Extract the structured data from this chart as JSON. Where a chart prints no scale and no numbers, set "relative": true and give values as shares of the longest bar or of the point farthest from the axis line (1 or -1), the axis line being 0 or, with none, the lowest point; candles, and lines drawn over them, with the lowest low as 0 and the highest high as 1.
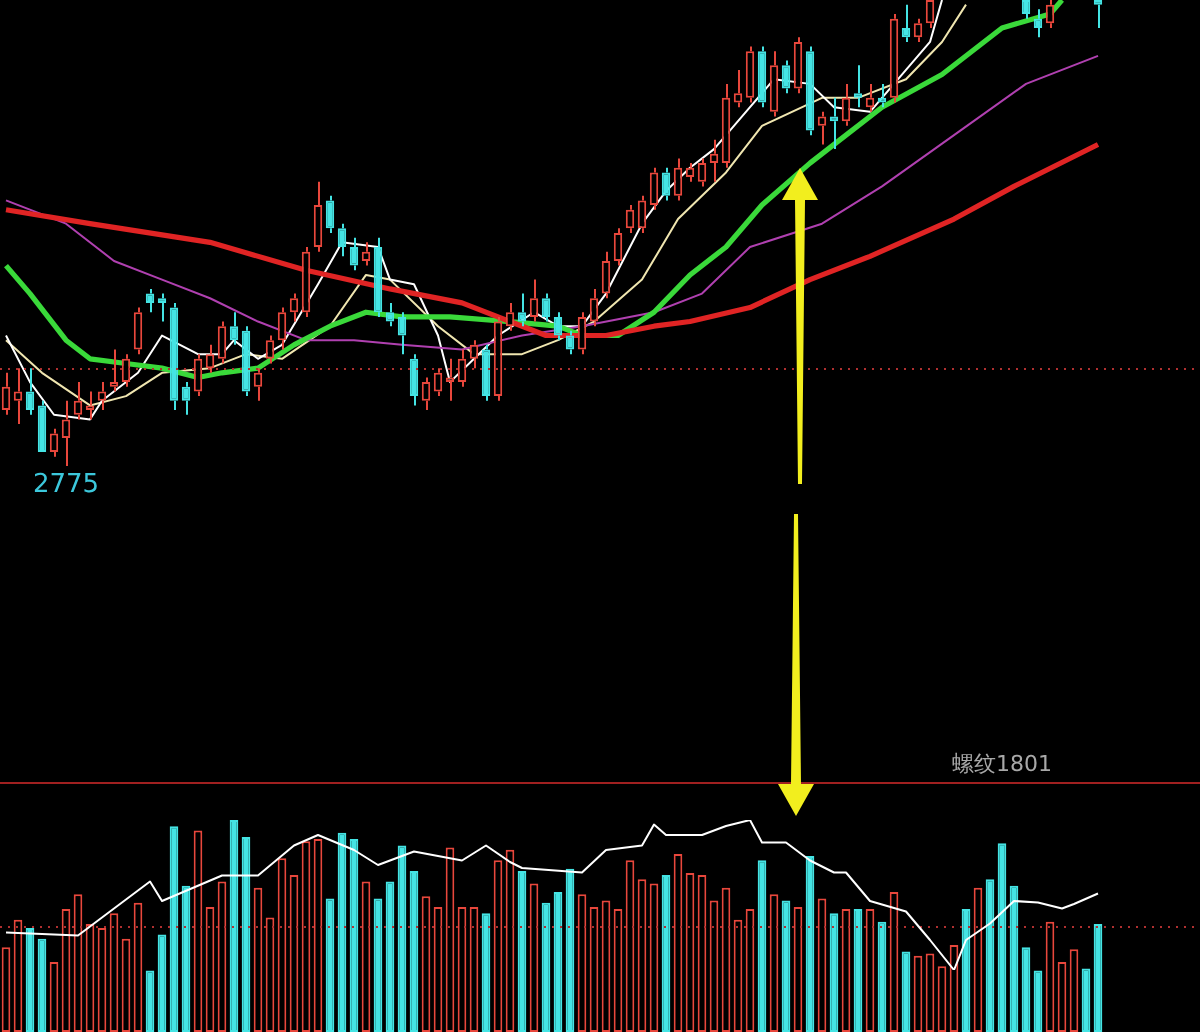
{
  "chart_data": [
    {
      "type": "candlestick",
      "relative": true,
      "categories": [
        null,
        null,
        null,
        null,
        null,
        null,
        null,
        null,
        null,
        null,
        null,
        null,
        null,
        null,
        null,
        null,
        null,
        null,
        null,
        null,
        null,
        null,
        null,
        null,
        null,
        null,
        null,
        null,
        null,
        null,
        null,
        null,
        null,
        null,
        null,
        null,
        null,
        null,
        null,
        null,
        null,
        null,
        null,
        null,
        null,
        null,
        null,
        null,
        null,
        null,
        null,
        null,
        null,
        null,
        null,
        null,
        null,
        null,
        null,
        null,
        null,
        null,
        null,
        null,
        null,
        null,
        null,
        null,
        null,
        null,
        null,
        null,
        null,
        null,
        null,
        null,
        null,
        null,
        null,
        null,
        null,
        null,
        null,
        null,
        null,
        null,
        null,
        null,
        null,
        null,
        null,
        null
      ],
      "ohlc": [
        [
          0.12,
          0.2,
          0.11,
          0.17
        ],
        [
          0.14,
          0.21,
          0.09,
          0.16
        ],
        [
          0.16,
          0.21,
          0.11,
          0.12
        ],
        [
          0.13,
          0.14,
          0.03,
          0.03
        ],
        [
          0.03,
          0.08,
          0.02,
          0.07
        ],
        [
          0.06,
          0.14,
          0,
          0.1
        ],
        [
          0.11,
          0.18,
          0.1,
          0.14
        ],
        [
          0.12,
          0.16,
          0.1,
          0.13
        ],
        [
          0.14,
          0.18,
          0.12,
          0.16
        ],
        [
          0.17,
          0.25,
          0.16,
          0.18
        ],
        [
          0.18,
          0.24,
          0.17,
          0.23
        ],
        [
          0.25,
          0.34,
          0.24,
          0.33
        ],
        [
          0.37,
          0.38,
          0.33,
          0.35
        ],
        [
          0.36,
          0.37,
          0.31,
          0.35
        ],
        [
          0.34,
          0.35,
          0.12,
          0.14
        ],
        [
          0.17,
          0.18,
          0.11,
          0.14
        ],
        [
          0.16,
          0.24,
          0.15,
          0.23
        ],
        [
          0.21,
          0.26,
          0.2,
          0.24
        ],
        [
          0.23,
          0.31,
          0.22,
          0.3
        ],
        [
          0.3,
          0.33,
          0.26,
          0.27
        ],
        [
          0.29,
          0.3,
          0.15,
          0.16
        ],
        [
          0.17,
          0.21,
          0.14,
          0.2
        ],
        [
          0.23,
          0.28,
          0.22,
          0.27
        ],
        [
          0.27,
          0.34,
          0.25,
          0.33
        ],
        [
          0.33,
          0.37,
          0.31,
          0.36
        ],
        [
          0.33,
          0.47,
          0.32,
          0.46
        ],
        [
          0.47,
          0.61,
          0.46,
          0.56
        ],
        [
          0.57,
          0.58,
          0.5,
          0.51
        ],
        [
          0.51,
          0.52,
          0.45,
          0.47
        ],
        [
          0.47,
          0.49,
          0.42,
          0.43
        ],
        [
          0.44,
          0.48,
          0.43,
          0.46
        ],
        [
          0.47,
          0.49,
          0.32,
          0.33
        ],
        [
          0.33,
          0.35,
          0.3,
          0.31
        ],
        [
          0.32,
          0.33,
          0.24,
          0.28
        ],
        [
          0.23,
          0.24,
          0.13,
          0.15
        ],
        [
          0.14,
          0.19,
          0.12,
          0.18
        ],
        [
          0.16,
          0.21,
          0.15,
          0.2
        ],
        [
          0.18,
          0.23,
          0.14,
          0.19
        ],
        [
          0.18,
          0.25,
          0.17,
          0.23
        ],
        [
          0.23,
          0.27,
          0.21,
          0.26
        ],
        [
          0.25,
          0.26,
          0.14,
          0.15
        ],
        [
          0.15,
          0.32,
          0.14,
          0.31
        ],
        [
          0.3,
          0.35,
          0.29,
          0.33
        ],
        [
          0.33,
          0.37,
          0.3,
          0.31
        ],
        [
          0.32,
          0.4,
          0.31,
          0.36
        ],
        [
          0.36,
          0.37,
          0.31,
          0.32
        ],
        [
          0.32,
          0.33,
          0.27,
          0.28
        ],
        [
          0.28,
          0.29,
          0.24,
          0.25
        ],
        [
          0.25,
          0.33,
          0.24,
          0.32
        ],
        [
          0.31,
          0.38,
          0.3,
          0.36
        ],
        [
          0.37,
          0.46,
          0.36,
          0.44
        ],
        [
          0.44,
          0.51,
          0.43,
          0.5
        ],
        [
          0.51,
          0.56,
          0.5,
          0.55
        ],
        [
          0.51,
          0.58,
          0.5,
          0.57
        ],
        [
          0.56,
          0.64,
          0.55,
          0.63
        ],
        [
          0.63,
          0.64,
          0.57,
          0.58
        ],
        [
          0.58,
          0.66,
          0.57,
          0.64
        ],
        [
          0.62,
          0.65,
          0.61,
          0.64
        ],
        [
          0.61,
          0.66,
          0.6,
          0.65
        ],
        [
          0.65,
          0.7,
          0.61,
          0.67
        ],
        [
          0.65,
          0.82,
          0.64,
          0.79
        ],
        [
          0.78,
          0.85,
          0.77,
          0.8
        ],
        [
          0.79,
          0.9,
          0.78,
          0.89
        ],
        [
          0.89,
          0.9,
          0.77,
          0.78
        ],
        [
          0.76,
          0.89,
          0.75,
          0.86
        ],
        [
          0.86,
          0.87,
          0.8,
          0.81
        ],
        [
          0.81,
          0.92,
          0.8,
          0.91
        ],
        [
          0.89,
          0.9,
          0.71,
          0.72
        ],
        [
          0.73,
          0.76,
          0.69,
          0.75
        ],
        [
          0.75,
          0.79,
          0.68,
          0.74
        ],
        [
          0.74,
          0.82,
          0.73,
          0.79
        ],
        [
          0.8,
          0.86,
          0.77,
          0.79
        ],
        [
          0.77,
          0.82,
          0.76,
          0.79
        ],
        [
          0.79,
          0.82,
          0.77,
          0.78
        ],
        [
          0.79,
          0.97,
          0.78,
          0.96
        ],
        [
          0.94,
          0.99,
          0.91,
          0.92
        ],
        [
          0.92,
          0.96,
          0.91,
          0.95
        ],
        [
          0.95,
          1,
          0.94,
          1
        ],
        null,
        null,
        null,
        null,
        null,
        null,
        null,
        [
          1,
          1,
          0.96,
          0.97
        ],
        [
          0.96,
          0.98,
          0.92,
          0.94
        ],
        [
          0.95,
          1,
          0.94,
          0.99
        ],
        null,
        null,
        null,
        [
          1,
          1,
          0.94,
          0.99
        ]
      ],
      "colors": [
        "#e8473c",
        "#e8473c",
        "#44e4e4",
        "#44e4e4",
        "#e8473c",
        "#e8473c",
        "#e8473c",
        "#e8473c",
        "#e8473c",
        "#e8473c",
        "#e8473c",
        "#e8473c",
        "#44e4e4",
        "#44e4e4",
        "#44e4e4",
        "#44e4e4",
        "#e8473c",
        "#e8473c",
        "#e8473c",
        "#44e4e4",
        "#44e4e4",
        "#e8473c",
        "#e8473c",
        "#e8473c",
        "#e8473c",
        "#e8473c",
        "#e8473c",
        "#44e4e4",
        "#44e4e4",
        "#44e4e4",
        "#e8473c",
        "#44e4e4",
        "#44e4e4",
        "#44e4e4",
        "#44e4e4",
        "#e8473c",
        "#e8473c",
        "#e8473c",
        "#e8473c",
        "#e8473c",
        "#44e4e4",
        "#e8473c",
        "#e8473c",
        "#44e4e4",
        "#e8473c",
        "#44e4e4",
        "#44e4e4",
        "#44e4e4",
        "#e8473c",
        "#e8473c",
        "#e8473c",
        "#e8473c",
        "#e8473c",
        "#e8473c",
        "#e8473c",
        "#44e4e4",
        "#e8473c",
        "#e8473c",
        "#e8473c",
        "#e8473c",
        "#e8473c",
        "#e8473c",
        "#e8473c",
        "#44e4e4",
        "#e8473c",
        "#44e4e4",
        "#e8473c",
        "#44e4e4",
        "#e8473c",
        "#44e4e4",
        "#e8473c",
        "#44e4e4",
        "#e8473c",
        "#44e4e4",
        "#e8473c",
        "#44e4e4",
        "#e8473c",
        "#e8473c",
        "#e8473c",
        "#e8473c",
        "#44e4e4",
        "#e8473c",
        "#44e4e4",
        "#44e4e4",
        "#44e4e4",
        "#44e4e4",
        "#44e4e4",
        "#e8473c",
        "#e8473c",
        "#e8473c",
        "#44e4e4",
        "#44e4e4"
      ],
      "series": [
        {
          "type": "line",
          "color": "#e02424",
          "values": [
            0.55,
            null,
            null,
            null,
            null,
            null,
            null,
            0.52,
            null,
            null,
            null,
            null,
            null,
            null,
            null,
            null,
            null,
            0.48,
            null,
            null,
            null,
            null,
            null,
            null,
            null,
            0.42,
            null,
            null,
            null,
            null,
            null,
            null,
            0.38,
            null,
            null,
            null,
            null,
            null,
            0.35,
            null,
            null,
            null,
            0.31,
            null,
            null,
            0.28,
            null,
            0.28,
            null,
            null,
            0.28,
            null,
            null,
            null,
            0.3,
            null,
            null,
            0.31,
            null,
            null,
            null,
            null,
            0.34,
            null,
            null,
            null,
            null,
            0.4,
            null,
            null,
            null,
            null,
            0.45,
            null,
            null,
            null,
            null,
            null,
            null,
            0.53,
            null,
            null,
            null,
            null,
            0.6,
            null,
            null,
            null,
            null,
            null,
            null,
            0.69
          ]
        },
        {
          "type": "line",
          "color": "#3ad93a",
          "values": [
            0.43,
            null,
            0.37,
            null,
            null,
            0.27,
            null,
            0.23,
            null,
            null,
            0.22,
            null,
            null,
            0.21,
            null,
            null,
            0.19,
            null,
            0.2,
            null,
            null,
            0.21,
            null,
            null,
            0.26,
            null,
            null,
            0.3,
            null,
            null,
            0.33,
            null,
            null,
            0.32,
            null,
            null,
            null,
            0.32,
            null,
            null,
            null,
            null,
            0.31,
            null,
            null,
            null,
            0.3,
            null,
            0.28,
            null,
            null,
            0.28,
            null,
            null,
            0.33,
            null,
            null,
            0.41,
            null,
            null,
            0.47,
            null,
            null,
            0.56,
            null,
            null,
            null,
            0.65,
            null,
            null,
            0.71,
            null,
            null,
            0.77,
            null,
            null,
            null,
            null,
            0.84,
            null,
            null,
            null,
            null,
            0.94,
            null,
            null,
            null,
            0.97,
            1,
            null,
            null,
            null
          ]
        },
        {
          "type": "line",
          "color": "#b040b0",
          "values": [
            0.57,
            null,
            null,
            null,
            null,
            0.52,
            null,
            null,
            null,
            0.44,
            null,
            null,
            null,
            0.4,
            null,
            null,
            null,
            0.36,
            null,
            null,
            null,
            0.31,
            null,
            null,
            null,
            0.27,
            null,
            null,
            null,
            0.27,
            null,
            null,
            null,
            0.26,
            null,
            null,
            null,
            null,
            0.25,
            null,
            null,
            null,
            null,
            0.28,
            null,
            null,
            null,
            null,
            0.3,
            null,
            null,
            null,
            null,
            null,
            0.33,
            null,
            null,
            null,
            0.37,
            null,
            null,
            null,
            0.47,
            null,
            null,
            null,
            null,
            null,
            0.52,
            null,
            null,
            null,
            null,
            0.6,
            null,
            null,
            null,
            null,
            null,
            0.71,
            null,
            null,
            null,
            null,
            null,
            0.82,
            null,
            null,
            null,
            null,
            null,
            0.88
          ]
        },
        {
          "type": "line",
          "color": "#ffffff",
          "values": [
            0.28,
            null,
            0.18,
            null,
            0.11,
            null,
            null,
            0.1,
            0.14,
            null,
            null,
            0.2,
            null,
            0.28,
            null,
            null,
            0.24,
            null,
            0.24,
            0.27,
            null,
            0.23,
            null,
            0.26,
            null,
            null,
            0.39,
            null,
            0.48,
            null,
            null,
            0.47,
            0.4,
            null,
            0.39,
            null,
            0.28,
            0.18,
            null,
            0.23,
            null,
            0.28,
            null,
            null,
            0.33,
            null,
            0.3,
            null,
            0.3,
            null,
            0.37,
            null,
            null,
            0.52,
            null,
            0.59,
            null,
            0.64,
            null,
            0.68,
            null,
            null,
            0.77,
            null,
            0.83,
            null,
            null,
            0.82,
            null,
            0.77,
            null,
            null,
            0.76,
            null,
            0.82,
            null,
            null,
            0.91,
            1,
            null,
            null,
            null,
            null,
            null,
            null,
            null,
            null,
            null,
            null,
            null,
            null,
            null
          ]
        },
        {
          "type": "line",
          "color": "#f0e6b0",
          "values": [
            0.27,
            null,
            null,
            0.2,
            null,
            null,
            null,
            0.13,
            null,
            null,
            0.15,
            null,
            null,
            0.2,
            null,
            null,
            null,
            0.21,
            null,
            null,
            0.24,
            null,
            null,
            0.23,
            null,
            null,
            null,
            0.3,
            null,
            null,
            0.41,
            null,
            0.4,
            null,
            null,
            null,
            0.3,
            null,
            null,
            0.24,
            null,
            null,
            null,
            0.24,
            null,
            null,
            0.27,
            null,
            null,
            0.31,
            null,
            null,
            null,
            0.4,
            null,
            null,
            0.53,
            null,
            null,
            null,
            0.63,
            null,
            null,
            0.73,
            null,
            null,
            null,
            null,
            0.79,
            null,
            null,
            0.79,
            null,
            null,
            null,
            0.83,
            null,
            null,
            0.91,
            null,
            0.99,
            null,
            null,
            null,
            null,
            null,
            null,
            null,
            null,
            null,
            null,
            null
          ]
        }
      ],
      "ref_lines": [
        {
          "axis": "y",
          "value": 0.21,
          "color": "#b03030",
          "line_style": "dotted"
        }
      ],
      "annotations": [
        "2775"
      ]
    },
    {
      "type": "bar",
      "relative": true,
      "categories": [
        null,
        null,
        null,
        null,
        null,
        null,
        null,
        null,
        null,
        null,
        null,
        null,
        null,
        null,
        null,
        null,
        null,
        null,
        null,
        null,
        null,
        null,
        null,
        null,
        null,
        null,
        null,
        null,
        null,
        null,
        null,
        null,
        null,
        null,
        null,
        null,
        null,
        null,
        null,
        null,
        null,
        null,
        null,
        null,
        null,
        null,
        null,
        null,
        null,
        null,
        null,
        null,
        null,
        null,
        null,
        null,
        null,
        null,
        null,
        null,
        null,
        null,
        null,
        null,
        null,
        null,
        null,
        null,
        null,
        null,
        null,
        null,
        null,
        null,
        null,
        null,
        null,
        null,
        null,
        null,
        null,
        null,
        null,
        null,
        null,
        null,
        null,
        null,
        null,
        null,
        null,
        null
      ],
      "series": [
        {
          "type": "bar",
          "values": [
            0.4,
            0.53,
            0.49,
            0.44,
            0.33,
            0.58,
            0.65,
            0.51,
            0.49,
            0.56,
            0.44,
            0.61,
            0.29,
            0.46,
            0.97,
            0.69,
            0.95,
            0.59,
            0.71,
            1,
            0.92,
            0.68,
            0.54,
            0.82,
            0.74,
            0.9,
            0.91,
            0.63,
            0.94,
            0.91,
            0.71,
            0.63,
            0.71,
            0.88,
            0.76,
            0.64,
            0.59,
            0.87,
            0.59,
            0.59,
            0.56,
            0.81,
            0.86,
            0.76,
            0.7,
            0.61,
            0.66,
            0.77,
            0.65,
            0.59,
            0.62,
            0.58,
            0.81,
            0.72,
            0.7,
            0.74,
            0.84,
            0.75,
            0.74,
            0.62,
            0.68,
            0.53,
            0.58,
            0.81,
            0.65,
            0.62,
            0.59,
            0.83,
            0.63,
            0.56,
            0.58,
            0.58,
            0.58,
            0.52,
            0.66,
            0.38,
            0.36,
            0.37,
            0.31,
            0.41,
            0.58,
            0.68,
            0.72,
            0.89,
            0.69,
            0.4,
            0.29,
            0.52,
            0.33,
            0.39,
            0.3,
            0.51
          ],
          "colors": [
            "#e8473c",
            "#e8473c",
            "#44e4e4",
            "#44e4e4",
            "#e8473c",
            "#e8473c",
            "#e8473c",
            "#e8473c",
            "#e8473c",
            "#e8473c",
            "#e8473c",
            "#e8473c",
            "#44e4e4",
            "#44e4e4",
            "#44e4e4",
            "#44e4e4",
            "#e8473c",
            "#e8473c",
            "#e8473c",
            "#44e4e4",
            "#44e4e4",
            "#e8473c",
            "#e8473c",
            "#e8473c",
            "#e8473c",
            "#e8473c",
            "#e8473c",
            "#44e4e4",
            "#44e4e4",
            "#44e4e4",
            "#e8473c",
            "#44e4e4",
            "#44e4e4",
            "#44e4e4",
            "#44e4e4",
            "#e8473c",
            "#e8473c",
            "#e8473c",
            "#e8473c",
            "#e8473c",
            "#44e4e4",
            "#e8473c",
            "#e8473c",
            "#44e4e4",
            "#e8473c",
            "#44e4e4",
            "#44e4e4",
            "#44e4e4",
            "#e8473c",
            "#e8473c",
            "#e8473c",
            "#e8473c",
            "#e8473c",
            "#e8473c",
            "#e8473c",
            "#44e4e4",
            "#e8473c",
            "#e8473c",
            "#e8473c",
            "#e8473c",
            "#e8473c",
            "#e8473c",
            "#e8473c",
            "#44e4e4",
            "#e8473c",
            "#44e4e4",
            "#e8473c",
            "#44e4e4",
            "#e8473c",
            "#44e4e4",
            "#e8473c",
            "#44e4e4",
            "#e8473c",
            "#44e4e4",
            "#e8473c",
            "#44e4e4",
            "#e8473c",
            "#e8473c",
            "#e8473c",
            "#e8473c",
            "#44e4e4",
            "#e8473c",
            "#44e4e4",
            "#44e4e4",
            "#44e4e4",
            "#44e4e4",
            "#44e4e4",
            "#e8473c",
            "#e8473c",
            "#e8473c",
            "#44e4e4",
            "#44e4e4"
          ]
        }
      ],
      "ref_lines": [
        {
          "axis": "y",
          "value": 0.5,
          "color": "#b03030",
          "line_style": "dotted"
        }
      ],
      "annotations": [
        "螺纹1801"
      ]
    },
    {
      "type": "line",
      "relative": true,
      "categories": [
        null,
        null,
        null,
        null,
        null,
        null,
        null,
        null,
        null,
        null,
        null,
        null,
        null,
        null,
        null,
        null,
        null,
        null,
        null,
        null,
        null,
        null,
        null,
        null,
        null,
        null,
        null,
        null,
        null,
        null,
        null,
        null,
        null,
        null,
        null,
        null,
        null,
        null,
        null,
        null,
        null,
        null,
        null,
        null,
        null,
        null,
        null,
        null,
        null,
        null,
        null,
        null,
        null,
        null,
        null,
        null,
        null,
        null,
        null,
        null,
        null,
        null,
        null,
        null,
        null,
        null,
        null,
        null,
        null,
        null,
        null,
        null,
        null,
        null,
        null,
        null,
        null,
        null,
        null,
        null,
        null,
        null,
        null,
        null,
        null,
        null,
        null,
        null,
        null,
        null,
        null,
        null
      ],
      "series": [
        {
          "type": "line",
          "color": "#ffffff",
          "values": [
            0.25,
            null,
            null,
            null,
            null,
            null,
            0.23,
            null,
            null,
            null,
            null,
            null,
            0.59,
            0.46,
            null,
            null,
            null,
            null,
            0.63,
            null,
            null,
            0.63,
            null,
            null,
            0.83,
            null,
            0.9,
            null,
            null,
            0.8,
            null,
            0.7,
            null,
            0.76,
            0.79,
            null,
            null,
            null,
            0.73,
            null,
            0.83,
            null,
            0.72,
            0.68,
            null,
            null,
            null,
            null,
            0.65,
            null,
            0.8,
            null,
            null,
            0.83,
            0.97,
            0.9,
            null,
            null,
            0.9,
            null,
            0.96,
            null,
            1,
            0.85,
            null,
            0.85,
            null,
            0.73,
            null,
            0.65,
            0.65,
            null,
            0.46,
            null,
            null,
            0.39,
            null,
            0.2,
            null,
            0,
            0.2,
            null,
            0.31,
            null,
            0.46,
            null,
            0.45,
            null,
            0.41,
            0.44,
            null,
            0.51
          ]
        }
      ]
    }
  ]
}
